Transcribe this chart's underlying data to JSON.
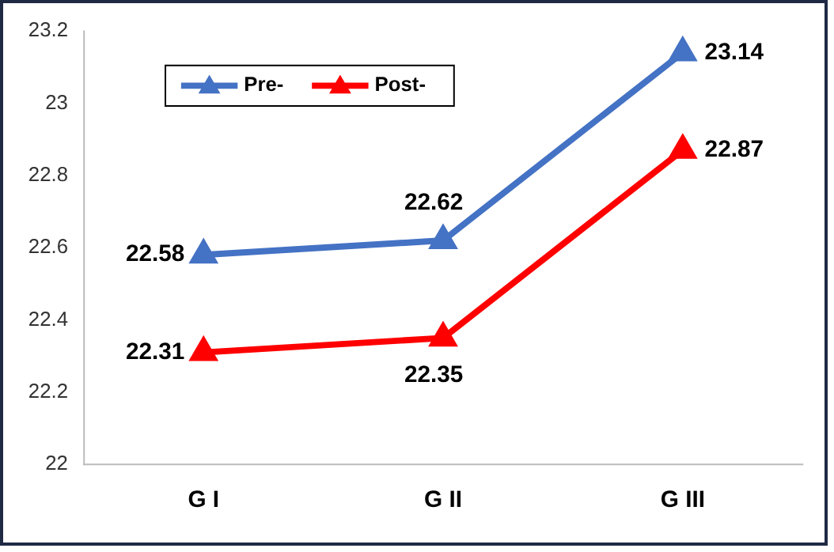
{
  "chart_data": {
    "type": "line",
    "categories": [
      "G I",
      "G II",
      "G III"
    ],
    "series": [
      {
        "name": "Pre-",
        "color": "#4472c4",
        "values": [
          22.58,
          22.62,
          23.14
        ]
      },
      {
        "name": "Post-",
        "color": "#ff0000",
        "values": [
          22.31,
          22.35,
          22.87
        ]
      }
    ],
    "ylim": [
      22,
      23.2
    ],
    "yticks": [
      22,
      22.2,
      22.4,
      22.6,
      22.8,
      23,
      23.2
    ],
    "grid": false,
    "legend": "top left",
    "marker": "triangle",
    "line_style": "solid",
    "data_labels": true
  }
}
